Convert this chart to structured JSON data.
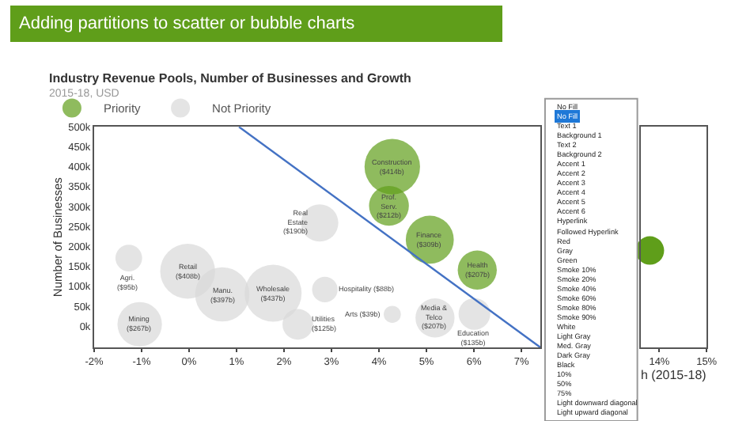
{
  "chart_data": [
    {
      "type": "bubble",
      "title": "Industry Revenue Pools, Number of Businesses and Growth",
      "subtitle": "2015-18, USD",
      "ylabel": "Number of Businesses",
      "annotations": [
        "Adding partitions to scatter or bubble charts",
        {
          "text": "Agri.\n($95b)",
          "x": -1.27,
          "y": 171000
        },
        {
          "text": "Retail\n($408b)",
          "x": -0.03,
          "y": 138000
        },
        {
          "text": "Manu.\n($397b)",
          "x": 0.7,
          "y": 80000
        },
        {
          "text": "Wholesale\n($437b)",
          "x": 1.77,
          "y": 83000
        },
        {
          "text": "Mining\n($267b)",
          "x": -1.04,
          "y": 5000
        },
        {
          "text": "Utilities\n($125b)",
          "x": 2.29,
          "y": 5000
        },
        {
          "text": "Hospitality ($88b)",
          "x": 2.86,
          "y": 92000
        },
        {
          "text": "Real\nEstate\n($190b)",
          "x": 2.75,
          "y": 259000
        },
        {
          "text": "Arts ($39b)",
          "x": 4.28,
          "y": 30000
        },
        {
          "text": "Media &\nTelco\n($207b)",
          "x": 5.18,
          "y": 21000
        },
        {
          "text": "Education\n($135b)",
          "x": 6.01,
          "y": 31000
        },
        {
          "text": "Construction\n($414b)",
          "x": 4.28,
          "y": 400000
        },
        {
          "text": "Prof.\nServ.\n($212b)",
          "x": 4.21,
          "y": 302000
        },
        {
          "text": "Finance\n($309b)",
          "x": 5.07,
          "y": 217000
        },
        {
          "text": "Health\n($207b)",
          "x": 6.07,
          "y": 141000
        }
      ],
      "series": [
        {
          "name": "Priority",
          "color": "#5f9e1a",
          "x": [
            4.28,
            4.21,
            5.07,
            6.07
          ],
          "values": [
            400000,
            302000,
            217000,
            141000
          ],
          "sizes": [
            0.95,
            0.49,
            0.71,
            0.47
          ]
        },
        {
          "name": "Not Priority",
          "color": "#d9d9d9",
          "x": [
            -1.27,
            -0.03,
            0.7,
            1.77,
            -1.04,
            2.29,
            2.86,
            2.75,
            4.28,
            5.18,
            6.01
          ],
          "values": [
            171000,
            138000,
            80000,
            83000,
            5000,
            5000,
            92000,
            259000,
            30000,
            21000,
            31000
          ],
          "sizes": [
            0.22,
            0.93,
            0.91,
            1,
            0.61,
            0.29,
            0.2,
            0.43,
            0.09,
            0.47,
            0.31
          ]
        },
        {
          "type": "line",
          "color": "#4472c4",
          "x": [
            1.05,
            7.4
          ],
          "values": [
            500000,
            -53000
          ]
        }
      ],
      "xlim": [
        -2,
        7.4
      ],
      "xticks": [
        {
          "value": -2,
          "label": "-2%"
        },
        {
          "value": -1,
          "label": "-1%"
        },
        {
          "value": 0,
          "label": "0%"
        },
        {
          "value": 1,
          "label": "1%"
        },
        {
          "value": 2,
          "label": "2%"
        },
        {
          "value": 3,
          "label": "3%"
        },
        {
          "value": 4,
          "label": "4%"
        },
        {
          "value": 5,
          "label": "5%"
        },
        {
          "value": 6,
          "label": "6%"
        },
        {
          "value": 7,
          "label": "7%"
        }
      ],
      "ylim": [
        -53000,
        500000
      ],
      "yticks": [
        {
          "value": 0,
          "label": "0k"
        },
        {
          "value": 50000,
          "label": "50k"
        },
        {
          "value": 100000,
          "label": "100k"
        },
        {
          "value": 150000,
          "label": "150k"
        },
        {
          "value": 200000,
          "label": "200k"
        },
        {
          "value": 250000,
          "label": "250k"
        },
        {
          "value": 300000,
          "label": "300k"
        },
        {
          "value": 350000,
          "label": "350k"
        },
        {
          "value": 400000,
          "label": "400k"
        },
        {
          "value": 450000,
          "label": "450k"
        },
        {
          "value": 500000,
          "label": "500k"
        }
      ],
      "legend": "top left"
    },
    {
      "type": "scatter",
      "xlabel": "h (2015-18)",
      "series": [
        {
          "color": "#5f9e1a",
          "x": [
            13.8
          ],
          "values": [
            190000
          ]
        }
      ],
      "xlim": [
        13.6,
        15
      ],
      "xticks": [
        {
          "value": 14,
          "label": "14%"
        },
        {
          "value": 15,
          "label": "15%"
        }
      ],
      "ylim": [
        -53000,
        500000
      ],
      "tick_labels": "x"
    },
    {
      "type": "other",
      "title": "No Fill",
      "annotations": [
        "No Fill",
        "Text 1",
        "Background 1",
        "Text 2",
        "Background 2",
        "Accent 1",
        "Accent 2",
        "Accent 3",
        "Accent 4",
        "Accent 5",
        "Accent 6",
        "Hyperlink",
        "Followed Hyperlink",
        "Red",
        "Gray",
        "Green",
        "Smoke 10%",
        "Smoke 20%",
        "Smoke 40%",
        "Smoke 60%",
        "Smoke 80%",
        "Smoke 90%",
        "White",
        "Light Gray",
        "Med. Gray",
        "Dark Gray",
        "Black",
        "10%",
        "50%",
        "75%",
        "Light downward diagonal",
        "Light upward diagonal"
      ]
    }
  ]
}
